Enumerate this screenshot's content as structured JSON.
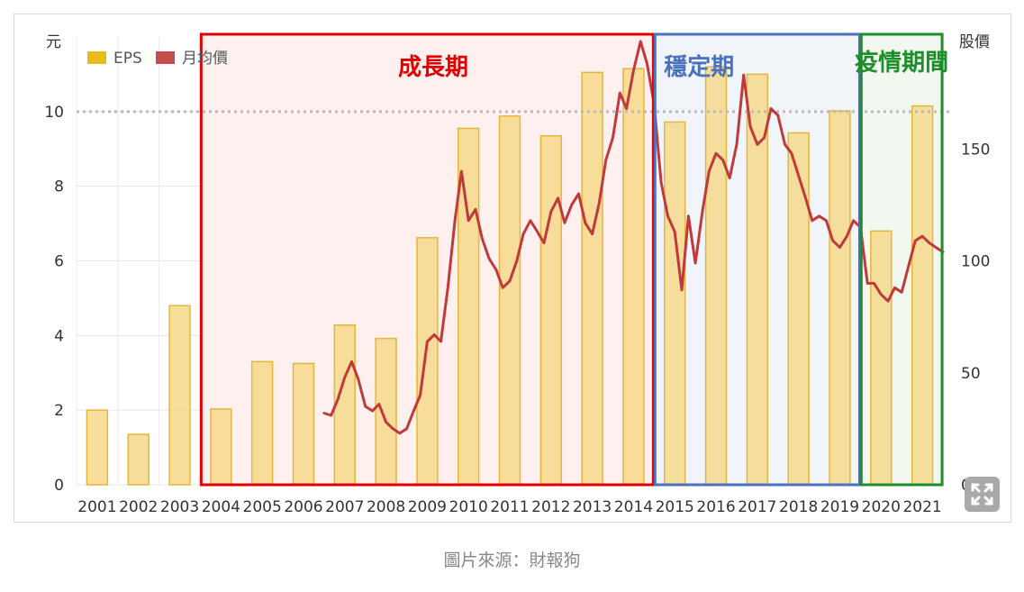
{
  "chart_data": {
    "type": "bar+line",
    "categories": [
      "2001",
      "2002",
      "2003",
      "2004",
      "2005",
      "2006",
      "2007",
      "2008",
      "2009",
      "2010",
      "2011",
      "2012",
      "2013",
      "2014",
      "2015",
      "2016",
      "2017",
      "2018",
      "2019",
      "2020",
      "2021"
    ],
    "series": [
      {
        "name": "EPS",
        "axis": "left",
        "type": "bar",
        "color": "#e8b500",
        "values": [
          2.0,
          1.35,
          4.8,
          2.03,
          3.3,
          3.25,
          4.28,
          3.92,
          6.62,
          9.55,
          9.88,
          9.35,
          11.05,
          11.15,
          9.72,
          11.2,
          11.0,
          9.43,
          10.02,
          6.8,
          10.15
        ]
      },
      {
        "name": "月均價",
        "axis": "right",
        "type": "line",
        "color": "#c0393b",
        "x": [
          2007.0,
          2007.17,
          2007.33,
          2007.5,
          2007.67,
          2007.83,
          2008.0,
          2008.17,
          2008.33,
          2008.5,
          2008.67,
          2008.83,
          2009.0,
          2009.17,
          2009.33,
          2009.5,
          2009.67,
          2009.83,
          2010.0,
          2010.17,
          2010.33,
          2010.5,
          2010.67,
          2010.83,
          2011.0,
          2011.17,
          2011.33,
          2011.5,
          2011.67,
          2011.83,
          2012.0,
          2012.17,
          2012.33,
          2012.5,
          2012.67,
          2012.83,
          2013.0,
          2013.17,
          2013.33,
          2013.5,
          2013.67,
          2013.83,
          2014.0,
          2014.17,
          2014.33,
          2014.5,
          2014.67,
          2014.83,
          2015.0,
          2015.17,
          2015.33,
          2015.5,
          2015.67,
          2015.83,
          2016.0,
          2016.17,
          2016.33,
          2016.5,
          2016.67,
          2016.83,
          2017.0,
          2017.17,
          2017.33,
          2017.5,
          2017.67,
          2017.83,
          2018.0,
          2018.17,
          2018.33,
          2018.5,
          2018.67,
          2018.83,
          2019.0,
          2019.17,
          2019.33,
          2019.5,
          2019.67,
          2019.83,
          2020.0,
          2020.17,
          2020.33,
          2020.5,
          2020.67,
          2020.83,
          2021.0,
          2021.17,
          2021.33,
          2021.5,
          2021.67,
          2021.83,
          2022.0
        ],
        "values": [
          32,
          31,
          38,
          48,
          55,
          47,
          35,
          33,
          36,
          28,
          25,
          23,
          25,
          33,
          40,
          64,
          67,
          64,
          88,
          118,
          140,
          118,
          123,
          110,
          101,
          96,
          88,
          91,
          100,
          112,
          118,
          113,
          108,
          122,
          128,
          117,
          125,
          130,
          117,
          112,
          126,
          145,
          155,
          175,
          168,
          185,
          198,
          188,
          170,
          135,
          120,
          113,
          87,
          120,
          99,
          122,
          140,
          148,
          145,
          137,
          152,
          183,
          160,
          152,
          155,
          168,
          165,
          152,
          148,
          138,
          128,
          118,
          120,
          118,
          109,
          106,
          111,
          118,
          115,
          90,
          90,
          85,
          82,
          88,
          86,
          98,
          109,
          111,
          108,
          106,
          104
        ]
      }
    ],
    "y_left": {
      "label": "元",
      "ticks": [
        "0",
        "2",
        "4",
        "6",
        "8",
        "10"
      ],
      "ylim": [
        0,
        12
      ]
    },
    "y_right": {
      "label": "股價",
      "ticks": [
        "0",
        "50",
        "100",
        "150"
      ],
      "ylim": [
        0,
        200
      ]
    },
    "reference_line": {
      "value": 10,
      "axis": "left",
      "style": "dotted",
      "color": "#bbbbbb"
    },
    "legend": {
      "position": "top-left",
      "items": [
        {
          "label": "EPS",
          "color": "#e8b500"
        },
        {
          "label": "月均價",
          "color": "#c0393b"
        }
      ]
    },
    "periods": [
      {
        "label": "成長期",
        "start": 2004,
        "end": 2014,
        "color": "#e00000",
        "fill": "#fff0f0"
      },
      {
        "label": "穩定期",
        "start": 2015,
        "end": 2019,
        "color": "#4b72bd",
        "fill": "#f1f5fa"
      },
      {
        "label": "疫情期間",
        "start": 2020,
        "end": 2021,
        "color": "#1e8e2a",
        "fill": "#f2f8ef"
      }
    ],
    "grid": true
  },
  "caption": "圖片來源：財報狗",
  "expand_icon": "expand-icon"
}
